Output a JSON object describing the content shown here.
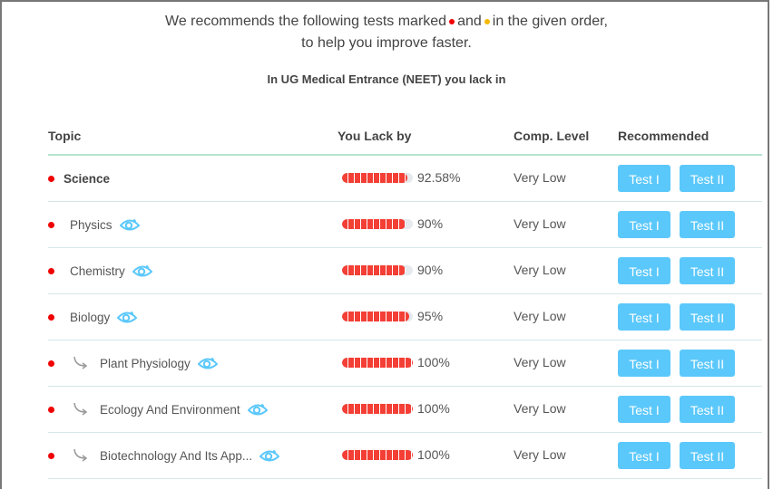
{
  "intro": {
    "line1_before": "We recommends the following tests marked",
    "line1_mid": "and",
    "line1_after": "in the given order,",
    "line2": "to help you improve faster.",
    "marker_colors": {
      "red": "#f00000",
      "yellow": "#f5b800"
    }
  },
  "subtitle": "In UG Medical Entrance (NEET) you lack in",
  "columns": [
    "Topic",
    "You Lack by",
    "Comp. Level",
    "Recommended"
  ],
  "rows": [
    {
      "name": "Science",
      "level": 0,
      "lack_percent": 92.58,
      "lack_label": "92.58%",
      "comp": "Very Low",
      "test1": "Test I",
      "test2": "Test II"
    },
    {
      "name": "Physics",
      "level": 1,
      "lack_percent": 90,
      "lack_label": "90%",
      "comp": "Very Low",
      "test1": "Test I",
      "test2": "Test II"
    },
    {
      "name": "Chemistry",
      "level": 1,
      "lack_percent": 90,
      "lack_label": "90%",
      "comp": "Very Low",
      "test1": "Test I",
      "test2": "Test II"
    },
    {
      "name": "Biology",
      "level": 1,
      "lack_percent": 95,
      "lack_label": "95%",
      "comp": "Very Low",
      "test1": "Test I",
      "test2": "Test II"
    },
    {
      "name": "Plant Physiology",
      "level": 2,
      "lack_percent": 100,
      "lack_label": "100%",
      "comp": "Very Low",
      "test1": "Test I",
      "test2": "Test II"
    },
    {
      "name": "Ecology And Environment",
      "level": 2,
      "lack_percent": 100,
      "lack_label": "100%",
      "comp": "Very Low",
      "test1": "Test I",
      "test2": "Test II"
    },
    {
      "name": "Biotechnology And Its App...",
      "level": 2,
      "lack_percent": 100,
      "lack_label": "100%",
      "comp": "Very Low",
      "test1": "Test I",
      "test2": "Test II"
    }
  ],
  "colors": {
    "button": "#5bc8fb",
    "bar": "#f33f35",
    "eye_icon": "#5bc8fb"
  }
}
